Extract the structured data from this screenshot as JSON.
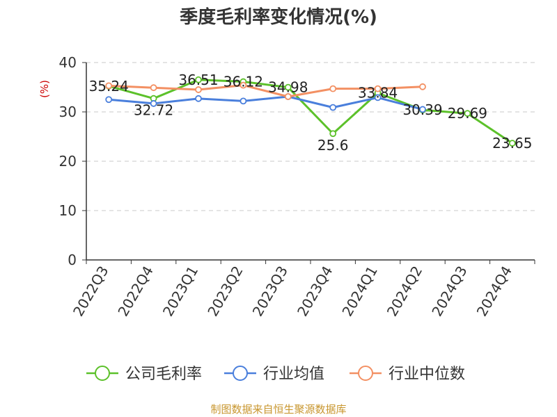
{
  "chart_data": {
    "type": "line",
    "title": "季度毛利率变化情况(%)",
    "ylabel": "(%)",
    "xlabel": "",
    "ylim": [
      0,
      40
    ],
    "yticks": [
      0,
      10,
      20,
      30,
      40
    ],
    "grid": true,
    "legend_position": "bottom",
    "categories": [
      "2022Q3",
      "2022Q4",
      "2023Q1",
      "2023Q2",
      "2023Q3",
      "2023Q4",
      "2024Q1",
      "2024Q2",
      "2024Q3",
      "2024Q4"
    ],
    "series": [
      {
        "name": "公司毛利率",
        "color": "#5cc12a",
        "values": [
          35.24,
          32.72,
          36.51,
          36.12,
          34.98,
          25.6,
          33.84,
          30.39,
          29.69,
          23.65
        ],
        "labels": [
          "35.24",
          "32.72",
          "36.51",
          "36.12",
          "34.98",
          "25.6",
          "33.84",
          "30.39",
          "29.69",
          "23.65"
        ]
      },
      {
        "name": "行业均值",
        "color": "#4a7fdc",
        "values": [
          32.5,
          31.7,
          32.7,
          32.2,
          33.1,
          30.9,
          32.9,
          30.5,
          null,
          null
        ]
      },
      {
        "name": "行业中位数",
        "color": "#f39063",
        "values": [
          35.3,
          34.9,
          34.5,
          35.4,
          33.1,
          34.7,
          34.7,
          35.1,
          null,
          null
        ]
      }
    ]
  },
  "footer": {
    "source": "制图数据来自恒生聚源数据库"
  }
}
